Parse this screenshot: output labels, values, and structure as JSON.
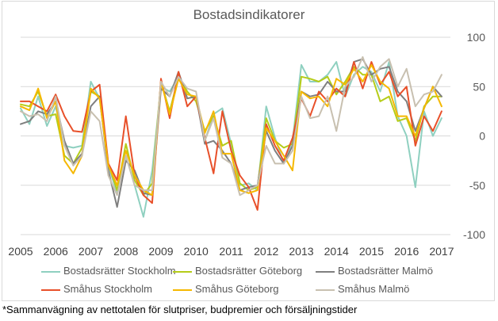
{
  "chart_data": {
    "type": "line",
    "title": "Bostadsindikatorer",
    "xlabel": "",
    "ylabel": "",
    "ylim": [
      -100,
      100
    ],
    "yticks": [
      100,
      50,
      0,
      -50,
      -100
    ],
    "xlim": [
      2005,
      2017.25
    ],
    "xticks": [
      "2005",
      "2006",
      "2007",
      "2008",
      "2009",
      "2010",
      "2011",
      "2012",
      "2013",
      "2014",
      "2015",
      "2016",
      "2017"
    ],
    "y_axis_side": "right",
    "grid": "horizontal",
    "legend_position": "bottom",
    "series": [
      {
        "name": "Bostadsrätter Stockholm",
        "color": "#8fd0c0",
        "x": [
          2005.0,
          2005.25,
          2005.5,
          2005.75,
          2006.0,
          2006.25,
          2006.5,
          2006.75,
          2007.0,
          2007.25,
          2007.5,
          2007.75,
          2008.0,
          2008.25,
          2008.5,
          2008.75,
          2009.0,
          2009.25,
          2009.5,
          2009.75,
          2010.0,
          2010.25,
          2010.5,
          2010.75,
          2011.0,
          2011.25,
          2011.5,
          2011.75,
          2012.0,
          2012.25,
          2012.5,
          2012.75,
          2013.0,
          2013.25,
          2013.5,
          2013.75,
          2014.0,
          2014.25,
          2014.5,
          2014.75,
          2015.0,
          2015.25,
          2015.5,
          2015.75,
          2016.0,
          2016.25,
          2016.5,
          2016.75,
          2017.0
        ],
        "values": [
          28,
          12,
          40,
          10,
          30,
          -10,
          -12,
          -10,
          55,
          38,
          -30,
          -58,
          -20,
          -50,
          -82,
          -35,
          50,
          45,
          60,
          38,
          40,
          -5,
          22,
          28,
          -8,
          -50,
          -48,
          -55,
          30,
          -2,
          -28,
          -5,
          72,
          55,
          55,
          62,
          75,
          40,
          62,
          70,
          65,
          45,
          75,
          20,
          0,
          -52,
          25,
          0,
          18
        ]
      },
      {
        "name": "Bostadsrätter Göteborg",
        "color": "#b5cc18",
        "x": [
          2005.0,
          2005.25,
          2005.5,
          2005.75,
          2006.0,
          2006.25,
          2006.5,
          2006.75,
          2007.0,
          2007.25,
          2007.5,
          2007.75,
          2008.0,
          2008.25,
          2008.5,
          2008.75,
          2009.0,
          2009.25,
          2009.5,
          2009.75,
          2010.0,
          2010.25,
          2010.5,
          2010.75,
          2011.0,
          2011.25,
          2011.5,
          2011.75,
          2012.0,
          2012.25,
          2012.5,
          2012.75,
          2013.0,
          2013.25,
          2013.5,
          2013.75,
          2014.0,
          2014.25,
          2014.5,
          2014.75,
          2015.0,
          2015.25,
          2015.5,
          2015.75,
          2016.0,
          2016.25,
          2016.5,
          2016.75,
          2017.0
        ],
        "values": [
          32,
          30,
          45,
          20,
          22,
          -20,
          -28,
          -12,
          45,
          40,
          -28,
          -55,
          -8,
          -45,
          -60,
          -48,
          55,
          25,
          60,
          45,
          35,
          5,
          20,
          -10,
          -5,
          -48,
          -55,
          -52,
          18,
          -5,
          -12,
          -8,
          60,
          58,
          55,
          60,
          42,
          55,
          70,
          62,
          62,
          35,
          40,
          15,
          18,
          -5,
          30,
          40,
          40
        ]
      },
      {
        "name": "Bostadsrätter Malmö",
        "color": "#7f7f7f",
        "x": [
          2005.0,
          2005.25,
          2005.5,
          2005.75,
          2006.0,
          2006.25,
          2006.5,
          2006.75,
          2007.0,
          2007.25,
          2007.5,
          2007.75,
          2008.0,
          2008.25,
          2008.5,
          2008.75,
          2009.0,
          2009.25,
          2009.5,
          2009.75,
          2010.0,
          2010.25,
          2010.5,
          2010.75,
          2011.0,
          2011.25,
          2011.5,
          2011.75,
          2012.0,
          2012.25,
          2012.5,
          2012.75,
          2013.0,
          2013.25,
          2013.5,
          2013.75,
          2014.0,
          2014.25,
          2014.5,
          2014.75,
          2015.0,
          2015.25,
          2015.5,
          2015.75,
          2016.0,
          2016.25,
          2016.5,
          2016.75,
          2017.0
        ],
        "values": [
          12,
          15,
          25,
          22,
          35,
          -5,
          -28,
          -18,
          30,
          40,
          -35,
          -72,
          -25,
          -35,
          -58,
          -60,
          48,
          40,
          65,
          38,
          40,
          -8,
          -5,
          -15,
          -28,
          -55,
          -52,
          -50,
          5,
          -15,
          -28,
          -10,
          45,
          40,
          42,
          55,
          45,
          45,
          75,
          78,
          62,
          68,
          70,
          45,
          35,
          5,
          28,
          50,
          40
        ]
      },
      {
        "name": "Småhus Stockholm",
        "color": "#e8502a",
        "x": [
          2005.0,
          2005.25,
          2005.5,
          2005.75,
          2006.0,
          2006.25,
          2006.5,
          2006.75,
          2007.0,
          2007.25,
          2007.5,
          2007.75,
          2008.0,
          2008.25,
          2008.5,
          2008.75,
          2009.0,
          2009.25,
          2009.5,
          2009.75,
          2010.0,
          2010.25,
          2010.5,
          2010.75,
          2011.0,
          2011.25,
          2011.5,
          2011.75,
          2012.0,
          2012.25,
          2012.5,
          2012.75,
          2013.0,
          2013.25,
          2013.5,
          2013.75,
          2014.0,
          2014.25,
          2014.5,
          2014.75,
          2015.0,
          2015.25,
          2015.5,
          2015.75,
          2016.0,
          2016.25,
          2016.5,
          2016.75,
          2017.0
        ],
        "values": [
          35,
          35,
          30,
          25,
          42,
          20,
          5,
          4,
          45,
          52,
          -28,
          -45,
          20,
          -40,
          -60,
          -68,
          58,
          18,
          65,
          30,
          40,
          -2,
          -38,
          25,
          -15,
          -40,
          -52,
          -75,
          12,
          -10,
          -25,
          -2,
          38,
          20,
          45,
          35,
          48,
          40,
          75,
          48,
          75,
          52,
          65,
          40,
          50,
          -10,
          20,
          5,
          25
        ]
      },
      {
        "name": "Småhus Göteborg",
        "color": "#f5b800",
        "x": [
          2005.0,
          2005.25,
          2005.5,
          2005.75,
          2006.0,
          2006.25,
          2006.5,
          2006.75,
          2007.0,
          2007.25,
          2007.5,
          2007.75,
          2008.0,
          2008.25,
          2008.5,
          2008.75,
          2009.0,
          2009.25,
          2009.5,
          2009.75,
          2010.0,
          2010.25,
          2010.5,
          2010.75,
          2011.0,
          2011.25,
          2011.5,
          2011.75,
          2012.0,
          2012.25,
          2012.5,
          2012.75,
          2013.0,
          2013.25,
          2013.5,
          2013.75,
          2014.0,
          2014.25,
          2014.5,
          2014.75,
          2015.0,
          2015.25,
          2015.5,
          2015.75,
          2016.0,
          2016.25,
          2016.5,
          2016.75,
          2017.0
        ],
        "values": [
          30,
          26,
          48,
          18,
          35,
          -25,
          -38,
          -20,
          48,
          38,
          -30,
          -50,
          -15,
          -40,
          -55,
          -60,
          55,
          22,
          58,
          42,
          40,
          3,
          25,
          -18,
          -18,
          -55,
          -58,
          -55,
          8,
          -5,
          -20,
          -35,
          45,
          38,
          40,
          30,
          58,
          52,
          68,
          55,
          72,
          55,
          48,
          20,
          20,
          0,
          28,
          50,
          30
        ]
      },
      {
        "name": "Småhus Malmö",
        "color": "#c8c0b0",
        "x": [
          2005.0,
          2005.25,
          2005.5,
          2005.75,
          2006.0,
          2006.25,
          2006.5,
          2006.75,
          2007.0,
          2007.25,
          2007.5,
          2007.75,
          2008.0,
          2008.25,
          2008.5,
          2008.75,
          2009.0,
          2009.25,
          2009.5,
          2009.75,
          2010.0,
          2010.25,
          2010.5,
          2010.75,
          2011.0,
          2011.25,
          2011.5,
          2011.75,
          2012.0,
          2012.25,
          2012.5,
          2012.75,
          2013.0,
          2013.25,
          2013.5,
          2013.75,
          2014.0,
          2014.25,
          2014.5,
          2014.75,
          2015.0,
          2015.25,
          2015.5,
          2015.75,
          2016.0,
          2016.25,
          2016.5,
          2016.75,
          2017.0
        ],
        "values": [
          25,
          20,
          22,
          15,
          40,
          -10,
          -30,
          -20,
          25,
          15,
          -40,
          -60,
          -20,
          -50,
          -55,
          -55,
          55,
          40,
          60,
          48,
          45,
          -5,
          18,
          -22,
          -28,
          -60,
          -55,
          -50,
          -10,
          -28,
          -28,
          -15,
          40,
          18,
          20,
          40,
          5,
          50,
          60,
          80,
          55,
          70,
          78,
          50,
          68,
          30,
          42,
          45,
          62
        ]
      }
    ]
  },
  "footnote": "*Sammanvägning av nettotalen för slutpriser, budpremier och försäljningstider"
}
